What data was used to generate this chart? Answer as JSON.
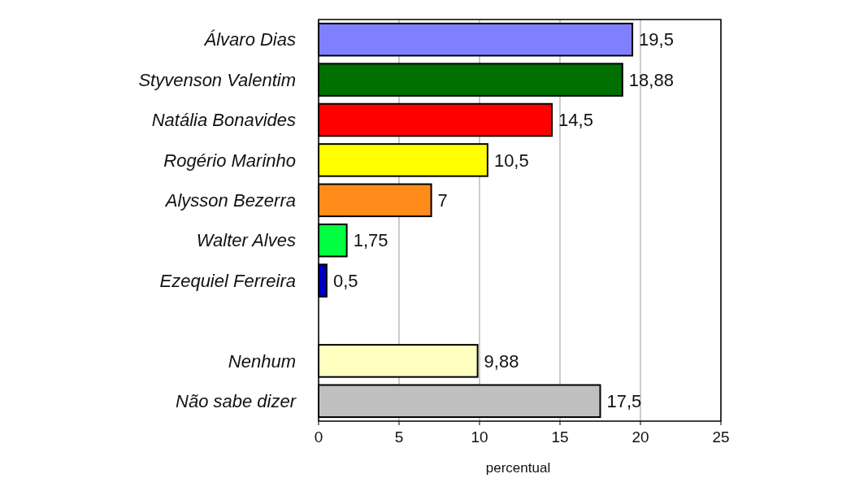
{
  "chart_data": {
    "type": "bar",
    "orientation": "horizontal",
    "xlabel": "percentual",
    "categories": [
      "Álvaro Dias",
      "Styvenson Valentim",
      "Natália Bonavides",
      "Rogério Marinho",
      "Alysson Bezerra",
      "Walter Alves",
      "Ezequiel Ferreira",
      null,
      "Nenhum",
      "Não sabe dizer"
    ],
    "values": [
      19.5,
      18.88,
      14.5,
      10.5,
      7,
      1.75,
      0.5,
      null,
      9.88,
      17.5
    ],
    "value_labels": [
      "19,5",
      "18,88",
      "14,5",
      "10,5",
      "7",
      "1,75",
      "0,5",
      null,
      "9,88",
      "17,5"
    ],
    "colors": [
      "#8080ff",
      "#007000",
      "#ff0000",
      "#ffff00",
      "#ff8c1a",
      "#00ff40",
      "#0000c0",
      null,
      "#ffffc0",
      "#c0c0c0"
    ],
    "xlim": [
      0,
      25
    ],
    "xticks": [
      0,
      5,
      10,
      15,
      20,
      25
    ],
    "grid": "x"
  }
}
